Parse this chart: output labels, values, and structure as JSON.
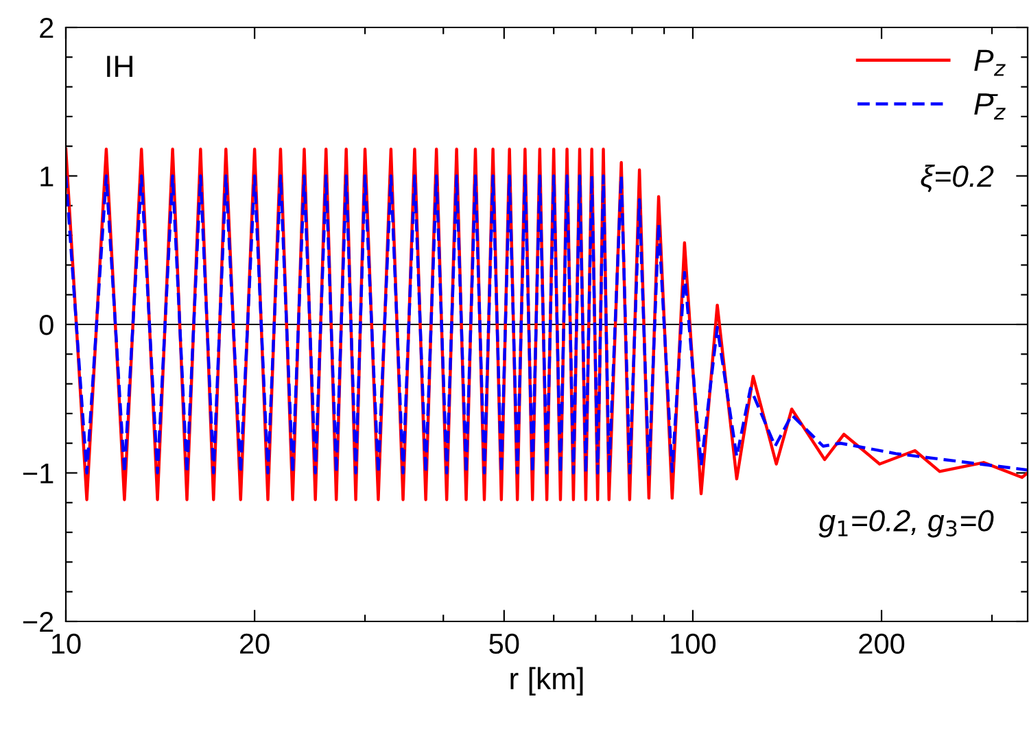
{
  "chart_data": {
    "type": "line",
    "xlabel": "r [km]",
    "log": "x",
    "xlim": [
      10,
      342
    ],
    "ylim": [
      -2,
      2
    ],
    "xticks": [
      10,
      20,
      {
        "value": 30,
        "label": null
      },
      {
        "value": 40,
        "label": null
      },
      50,
      {
        "value": 60,
        "label": null
      },
      {
        "value": 70,
        "label": null
      },
      {
        "value": 80,
        "label": null
      },
      {
        "value": 90,
        "label": null
      },
      100,
      200,
      {
        "value": 300,
        "label": null
      }
    ],
    "yticks": [
      -2,
      {
        "value": -1.8,
        "label": null
      },
      {
        "value": -1.6,
        "label": null
      },
      {
        "value": -1.4,
        "label": null
      },
      {
        "value": -1.2,
        "label": null
      },
      -1,
      {
        "value": -0.8,
        "label": null
      },
      {
        "value": -0.6,
        "label": null
      },
      {
        "value": -0.4,
        "label": null
      },
      {
        "value": -0.2,
        "label": null
      },
      0,
      {
        "value": 0.2,
        "label": null
      },
      {
        "value": 0.4,
        "label": null
      },
      {
        "value": 0.6,
        "label": null
      },
      {
        "value": 0.8,
        "label": null
      },
      1,
      {
        "value": 1.2,
        "label": null
      },
      {
        "value": 1.4,
        "label": null
      },
      {
        "value": 1.6,
        "label": null
      },
      {
        "value": 1.8,
        "label": null
      },
      2
    ],
    "grid": false,
    "legend": "top right",
    "ref_lines": [
      {
        "axis": "y",
        "value": 0,
        "color": "#000000",
        "line_style": "solid"
      }
    ],
    "annotations": [
      "IH",
      "ξ=0.2",
      "g$_{1}$=0.2, g$_{3}$=0"
    ],
    "series": [
      {
        "name": "P$_{z}$",
        "color": "#ff0000",
        "line_style": "solid",
        "x": [
          10,
          10.8,
          11.6,
          12.4,
          13.2,
          14,
          14.8,
          15.6,
          16.4,
          17.2,
          18,
          19,
          20,
          21,
          22,
          23,
          24,
          25,
          26,
          27,
          28,
          29,
          30,
          31.5,
          33,
          34.5,
          36,
          37.5,
          39,
          40.5,
          42,
          43.5,
          45,
          46.5,
          48,
          49.5,
          51,
          52.5,
          54,
          55.5,
          57,
          58.5,
          60,
          61.5,
          63,
          64.5,
          66,
          67.5,
          69,
          70.5,
          72,
          73.5,
          76.9,
          79.3,
          82.2,
          85.1,
          88.2,
          92.7,
          97.0,
          103.1,
          109.4,
          117.5,
          124.8,
          135.9,
          143.8,
          162.3,
          174.2,
          198.6,
          226.1,
          247.6,
          291,
          335,
          342
        ],
        "values": [
          1.18,
          -1.18,
          1.18,
          -1.18,
          1.18,
          -1.18,
          1.18,
          -1.18,
          1.18,
          -1.18,
          1.18,
          -1.18,
          1.18,
          -1.18,
          1.18,
          -1.18,
          1.18,
          -1.18,
          1.18,
          -1.18,
          1.18,
          -1.18,
          1.18,
          -1.18,
          1.18,
          -1.18,
          1.18,
          -1.18,
          1.18,
          -1.18,
          1.18,
          -1.18,
          1.18,
          -1.18,
          1.18,
          -1.18,
          1.18,
          -1.18,
          1.18,
          -1.18,
          1.18,
          -1.18,
          1.18,
          -1.18,
          1.18,
          -1.18,
          1.18,
          -1.18,
          1.18,
          -1.18,
          1.18,
          -1.18,
          1.09,
          -1.18,
          1.04,
          -1.17,
          0.86,
          -1.17,
          0.55,
          -1.14,
          0.13,
          -1.04,
          -0.35,
          -0.94,
          -0.57,
          -0.91,
          -0.74,
          -0.94,
          -0.85,
          -0.99,
          -0.93,
          -1.03,
          -1.0
        ]
      },
      {
        "name": "P̄$_{z}$",
        "color": "#0000ff",
        "line_style": "dashed",
        "x": [
          10,
          10.8,
          11.6,
          12.4,
          13.2,
          14,
          14.8,
          15.6,
          16.4,
          17.2,
          18,
          19,
          20,
          21,
          22,
          23,
          24,
          25,
          26,
          27,
          28,
          29,
          30,
          31.5,
          33,
          34.5,
          36,
          37.5,
          39,
          40.5,
          42,
          43.5,
          45,
          46.5,
          48,
          49.5,
          51,
          52.5,
          54,
          55.5,
          57,
          58.5,
          60,
          61.5,
          63,
          64.5,
          66,
          67.5,
          69,
          70.5,
          72,
          73.5,
          76.9,
          79.3,
          82.2,
          85.1,
          88.2,
          92.7,
          97.0,
          103.1,
          109.4,
          117.5,
          123.6,
          135.3,
          143.8,
          161.4,
          172,
          210.8,
          342
        ],
        "values": [
          1.0,
          -1.0,
          1.0,
          -1.0,
          1.0,
          -1.0,
          1.0,
          -1.0,
          1.0,
          -1.0,
          1.0,
          -1.0,
          1.0,
          -1.0,
          1.0,
          -1.0,
          1.0,
          -1.0,
          1.0,
          -1.0,
          1.0,
          -1.0,
          1.0,
          -1.0,
          1.0,
          -1.0,
          1.0,
          -1.0,
          1.0,
          -1.0,
          1.0,
          -1.0,
          1.0,
          -1.0,
          1.0,
          -1.0,
          1.0,
          -1.0,
          1.0,
          -1.0,
          1.0,
          -1.0,
          1.0,
          -1.0,
          1.0,
          -1.0,
          1.0,
          -1.0,
          1.0,
          -1.0,
          1.0,
          -1.0,
          1.0,
          -1.0,
          0.84,
          -1.01,
          0.68,
          -0.99,
          0.35,
          -0.95,
          -0.02,
          -0.89,
          -0.43,
          -0.82,
          -0.61,
          -0.82,
          -0.8,
          -0.87,
          -0.98
        ]
      }
    ]
  }
}
